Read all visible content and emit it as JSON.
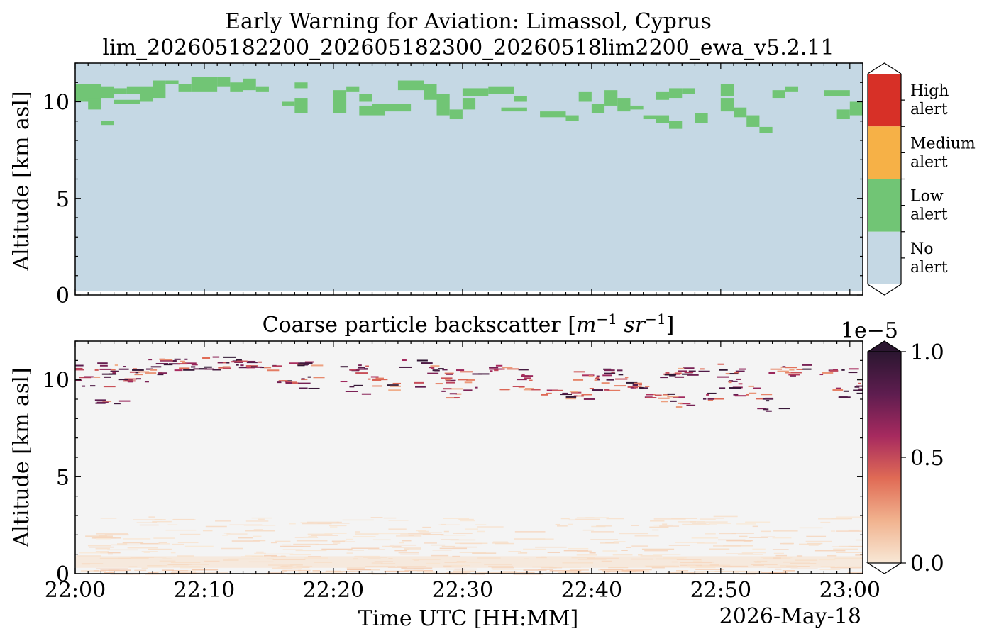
{
  "chart_data": [
    {
      "type": "heatmap",
      "title": "Early Warning for Aviation: Limassol, Cyprus",
      "subtitle": "lim_202605182200_202605182300_20260518lim2200_ewa_v5.2.11",
      "xlabel": "",
      "ylabel": "Altitude [km asl]",
      "xlim": [
        "22:00",
        "23:01"
      ],
      "ylim": [
        0,
        12
      ],
      "y_ticks": [
        "0",
        "5",
        "10"
      ],
      "x_ticks": [
        "22:00",
        "22:10",
        "22:20",
        "22:30",
        "22:40",
        "22:50",
        "23:00"
      ],
      "colorbar": {
        "levels": [
          {
            "label_line1": "High",
            "label_line2": "alert",
            "color": "#d73027"
          },
          {
            "label_line1": "Medium",
            "label_line2": "alert",
            "color": "#f6b147"
          },
          {
            "label_line1": "Low",
            "label_line2": "alert",
            "color": "#71c575"
          },
          {
            "label_line1": "No",
            "label_line2": "alert",
            "color": "#c5d8e4"
          }
        ]
      },
      "background_level": "No alert",
      "low_alert_cells": [
        {
          "t0": "22:00",
          "t1": "22:02",
          "z0": 10.0,
          "z1": 10.9
        },
        {
          "t0": "22:02",
          "t1": "22:03",
          "z0": 10.2,
          "z1": 10.8
        },
        {
          "t0": "22:01",
          "t1": "22:02",
          "z0": 9.6,
          "z1": 10.2
        },
        {
          "t0": "22:03",
          "t1": "22:04",
          "z0": 10.4,
          "z1": 10.7
        },
        {
          "t0": "22:02",
          "t1": "22:03",
          "z0": 8.8,
          "z1": 9.0
        },
        {
          "t0": "22:03",
          "t1": "22:05",
          "z0": 9.9,
          "z1": 10.1
        },
        {
          "t0": "22:04",
          "t1": "22:06",
          "z0": 10.4,
          "z1": 10.8
        },
        {
          "t0": "22:05",
          "t1": "22:06",
          "z0": 10.0,
          "z1": 10.4
        },
        {
          "t0": "22:06",
          "t1": "22:07",
          "z0": 10.2,
          "z1": 11.1
        },
        {
          "t0": "22:07",
          "t1": "22:08",
          "z0": 10.9,
          "z1": 11.1
        },
        {
          "t0": "22:08",
          "t1": "22:09",
          "z0": 10.5,
          "z1": 10.9
        },
        {
          "t0": "22:09",
          "t1": "22:11",
          "z0": 10.5,
          "z1": 11.3
        },
        {
          "t0": "22:11",
          "t1": "22:12",
          "z0": 10.8,
          "z1": 11.3
        },
        {
          "t0": "22:12",
          "t1": "22:13",
          "z0": 10.5,
          "z1": 11.0
        },
        {
          "t0": "22:13",
          "t1": "22:14",
          "z0": 10.6,
          "z1": 11.2
        },
        {
          "t0": "22:14",
          "t1": "22:15",
          "z0": 10.5,
          "z1": 10.8
        },
        {
          "t0": "22:17",
          "t1": "22:18",
          "z0": 10.7,
          "z1": 11.0
        },
        {
          "t0": "22:17",
          "t1": "22:18",
          "z0": 9.4,
          "z1": 10.2
        },
        {
          "t0": "22:16",
          "t1": "22:17",
          "z0": 9.8,
          "z1": 10.0
        },
        {
          "t0": "22:20",
          "t1": "22:21",
          "z0": 9.4,
          "z1": 10.6
        },
        {
          "t0": "22:21",
          "t1": "22:22",
          "z0": 10.5,
          "z1": 10.8
        },
        {
          "t0": "22:22",
          "t1": "22:23",
          "z0": 10.0,
          "z1": 10.4
        },
        {
          "t0": "22:22",
          "t1": "22:24",
          "z0": 9.3,
          "z1": 9.8
        },
        {
          "t0": "22:23",
          "t1": "22:26",
          "z0": 9.5,
          "z1": 9.9
        },
        {
          "t0": "22:25",
          "t1": "22:27",
          "z0": 10.6,
          "z1": 11.1
        },
        {
          "t0": "22:27",
          "t1": "22:28",
          "z0": 10.1,
          "z1": 10.9
        },
        {
          "t0": "22:28",
          "t1": "22:29",
          "z0": 9.3,
          "z1": 10.4
        },
        {
          "t0": "22:29",
          "t1": "22:30",
          "z0": 9.1,
          "z1": 9.6
        },
        {
          "t0": "22:30",
          "t1": "22:31",
          "z0": 9.6,
          "z1": 10.2
        },
        {
          "t0": "22:30",
          "t1": "22:32",
          "z0": 10.3,
          "z1": 10.7
        },
        {
          "t0": "22:32",
          "t1": "22:34",
          "z0": 10.4,
          "z1": 10.8
        },
        {
          "t0": "22:33",
          "t1": "22:35",
          "z0": 9.5,
          "z1": 9.7
        },
        {
          "t0": "22:34",
          "t1": "22:35",
          "z0": 10.0,
          "z1": 10.3
        },
        {
          "t0": "22:36",
          "t1": "22:38",
          "z0": 9.2,
          "z1": 9.5
        },
        {
          "t0": "22:38",
          "t1": "22:39",
          "z0": 9.0,
          "z1": 9.3
        },
        {
          "t0": "22:39",
          "t1": "22:40",
          "z0": 10.0,
          "z1": 10.5
        },
        {
          "t0": "22:40",
          "t1": "22:41",
          "z0": 9.4,
          "z1": 9.9
        },
        {
          "t0": "22:41",
          "t1": "22:42",
          "z0": 9.8,
          "z1": 10.6
        },
        {
          "t0": "22:42",
          "t1": "22:43",
          "z0": 9.5,
          "z1": 10.2
        },
        {
          "t0": "22:43",
          "t1": "22:44",
          "z0": 9.6,
          "z1": 9.8
        },
        {
          "t0": "22:44",
          "t1": "22:45",
          "z0": 9.1,
          "z1": 9.3
        },
        {
          "t0": "22:45",
          "t1": "22:46",
          "z0": 10.1,
          "z1": 10.5
        },
        {
          "t0": "22:46",
          "t1": "22:47",
          "z0": 10.2,
          "z1": 10.7
        },
        {
          "t0": "22:47",
          "t1": "22:48",
          "z0": 10.4,
          "z1": 10.7
        },
        {
          "t0": "22:45",
          "t1": "22:46",
          "z0": 8.9,
          "z1": 9.3
        },
        {
          "t0": "22:46",
          "t1": "22:47",
          "z0": 8.6,
          "z1": 9.0
        },
        {
          "t0": "22:48",
          "t1": "22:49",
          "z0": 8.9,
          "z1": 9.4
        },
        {
          "t0": "22:50",
          "t1": "22:51",
          "z0": 10.3,
          "z1": 10.9
        },
        {
          "t0": "22:50",
          "t1": "22:51",
          "z0": 9.5,
          "z1": 10.2
        },
        {
          "t0": "22:51",
          "t1": "22:52",
          "z0": 9.2,
          "z1": 9.7
        },
        {
          "t0": "22:52",
          "t1": "22:53",
          "z0": 8.7,
          "z1": 9.3
        },
        {
          "t0": "22:53",
          "t1": "22:54",
          "z0": 8.4,
          "z1": 8.7
        },
        {
          "t0": "22:55",
          "t1": "22:56",
          "z0": 10.5,
          "z1": 10.8
        },
        {
          "t0": "22:54",
          "t1": "22:55",
          "z0": 10.2,
          "z1": 10.6
        },
        {
          "t0": "22:58",
          "t1": "23:00",
          "z0": 10.3,
          "z1": 10.6
        },
        {
          "t0": "22:59",
          "t1": "23:00",
          "z0": 9.1,
          "z1": 9.6
        },
        {
          "t0": "23:00",
          "t1": "23:01",
          "z0": 9.3,
          "z1": 10.0
        }
      ]
    },
    {
      "type": "heatmap",
      "title_text": "Coarse particle backscatter",
      "title_unit_1": "m",
      "title_unit_1_exp": "−1",
      "title_unit_2": "sr",
      "title_unit_2_exp": "−1",
      "xlabel": "Time UTC [HH:MM]",
      "date_label": "2026-May-18",
      "ylabel": "Altitude [km asl]",
      "xlim": [
        "22:00",
        "23:01"
      ],
      "ylim": [
        0,
        12
      ],
      "y_ticks": [
        "0",
        "5",
        "10"
      ],
      "x_ticks": [
        "22:00",
        "22:10",
        "22:20",
        "22:30",
        "22:40",
        "22:50",
        "23:00"
      ],
      "colorbar": {
        "scale_label": "1e−5",
        "min": 0.0,
        "max": 1.0,
        "ticks": [
          "0.0",
          "0.5",
          "1.0"
        ],
        "colors": [
          "#f8e8d6",
          "#f1b38f",
          "#e06b55",
          "#a72a5f",
          "#5e1d4f",
          "#2b1630"
        ]
      },
      "background_color": "#f4f4f4",
      "cloud_layer": {
        "z0": 8.6,
        "z1": 11.3,
        "value_range": [
          0.2,
          1.0
        ]
      },
      "boundary_layer": {
        "z0": 0.0,
        "z1": 3.0,
        "value_range": [
          0.0,
          0.15
        ]
      }
    }
  ]
}
